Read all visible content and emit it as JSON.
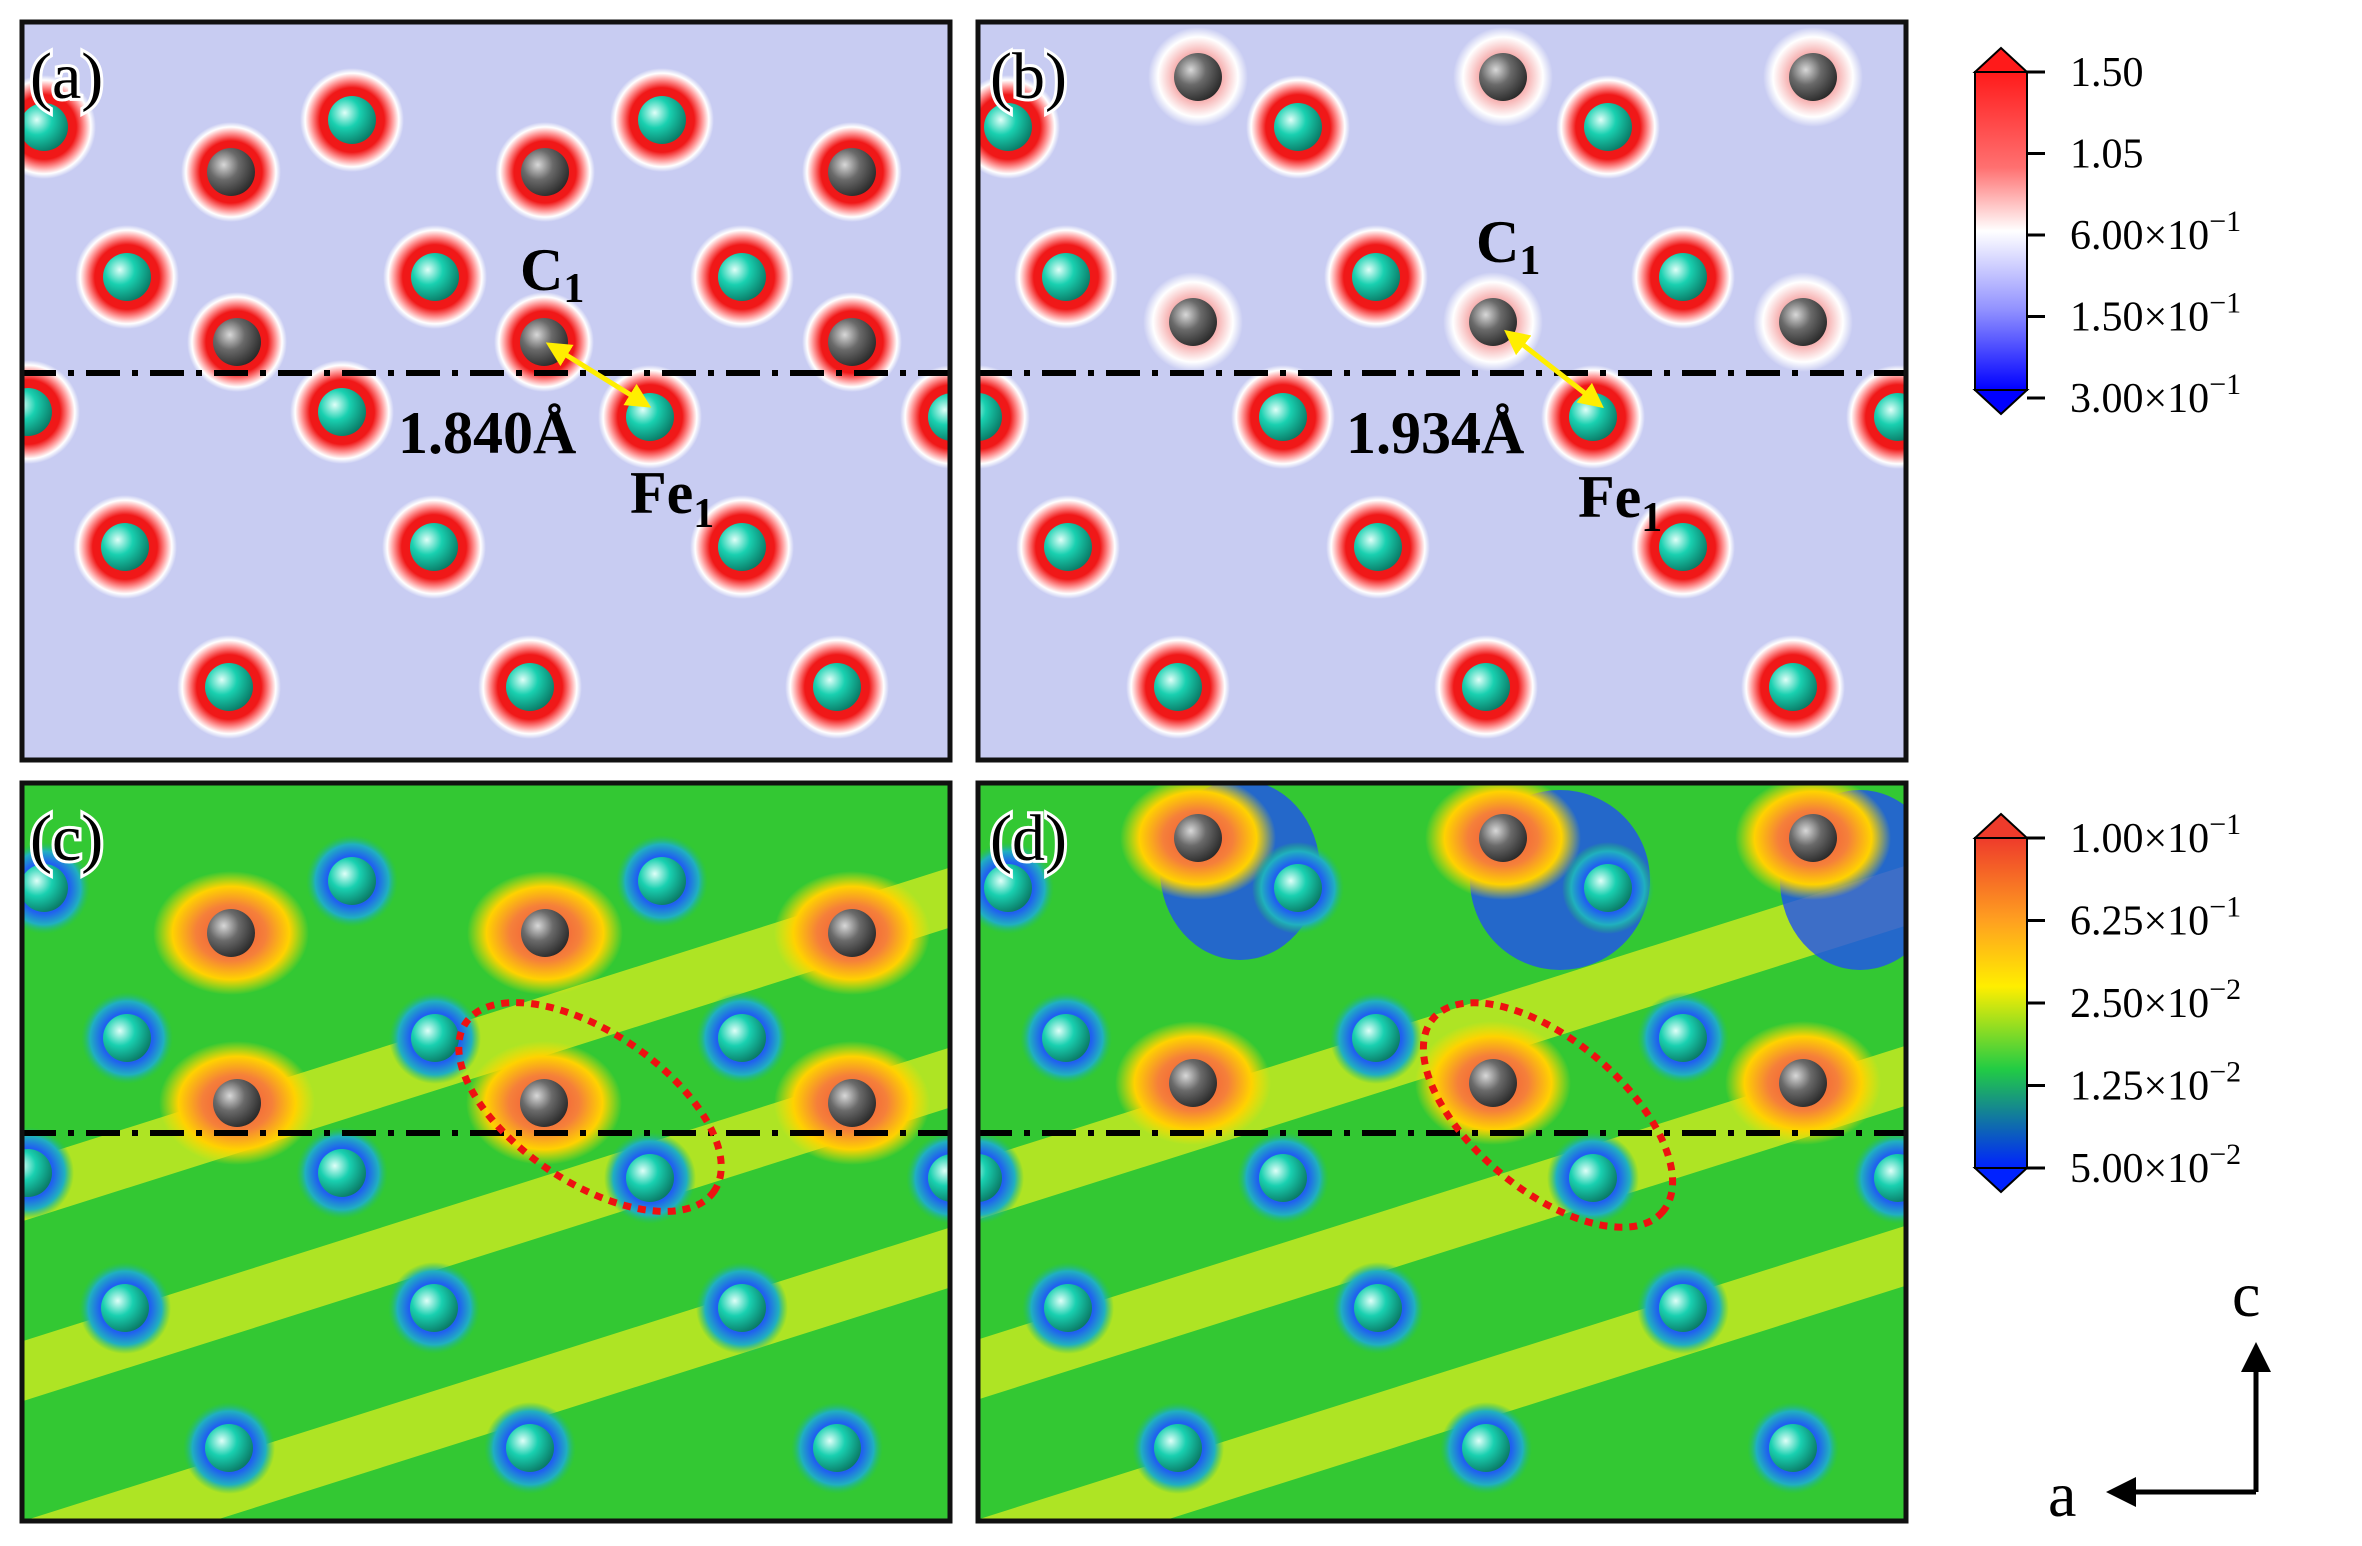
{
  "panels": {
    "a": {
      "label": "(a)",
      "atom_c": "C",
      "atom_c_sub": "1",
      "atom_fe": "Fe",
      "atom_fe_sub": "1",
      "distance": "1.840Å"
    },
    "b": {
      "label": "(b)",
      "atom_c": "C",
      "atom_c_sub": "1",
      "atom_fe": "Fe",
      "atom_fe_sub": "1",
      "distance": "1.934Å"
    },
    "c": {
      "label": "(c)"
    },
    "d": {
      "label": "(d)"
    }
  },
  "colorbar_top": {
    "ticks": [
      "1.50",
      "1.05",
      "6.00×10",
      "1.50×10",
      "3.00×10"
    ],
    "exps": [
      "",
      "",
      "−1",
      "−1",
      "−1"
    ],
    "colors": [
      "#ff1a1a",
      "#ff6060",
      "#ffffff",
      "#8888ff",
      "#0000ff"
    ]
  },
  "colorbar_bottom": {
    "ticks": [
      "1.00×10",
      "6.25×10",
      "2.50×10",
      "1.25×10",
      "5.00×10"
    ],
    "exps": [
      "−1",
      "−1",
      "−2",
      "−2",
      "−2"
    ],
    "colors": [
      "#ee3b2b",
      "#ffbb22",
      "#ffee00",
      "#22cc44",
      "#0022ff"
    ]
  },
  "axes": {
    "vertical_label": "c",
    "horizontal_label": "a"
  },
  "colors": {
    "carbon": "#5a5a5a",
    "iron": "#19d0b0",
    "density_background": "#c8ccf2",
    "density_high": "#f01818",
    "diff_background": "#33c833",
    "diff_positive": "#f06040",
    "diff_negative": "#1e3cf0",
    "bond_arrow": "#ffee00",
    "highlight_ellipse": "#ee1111"
  }
}
